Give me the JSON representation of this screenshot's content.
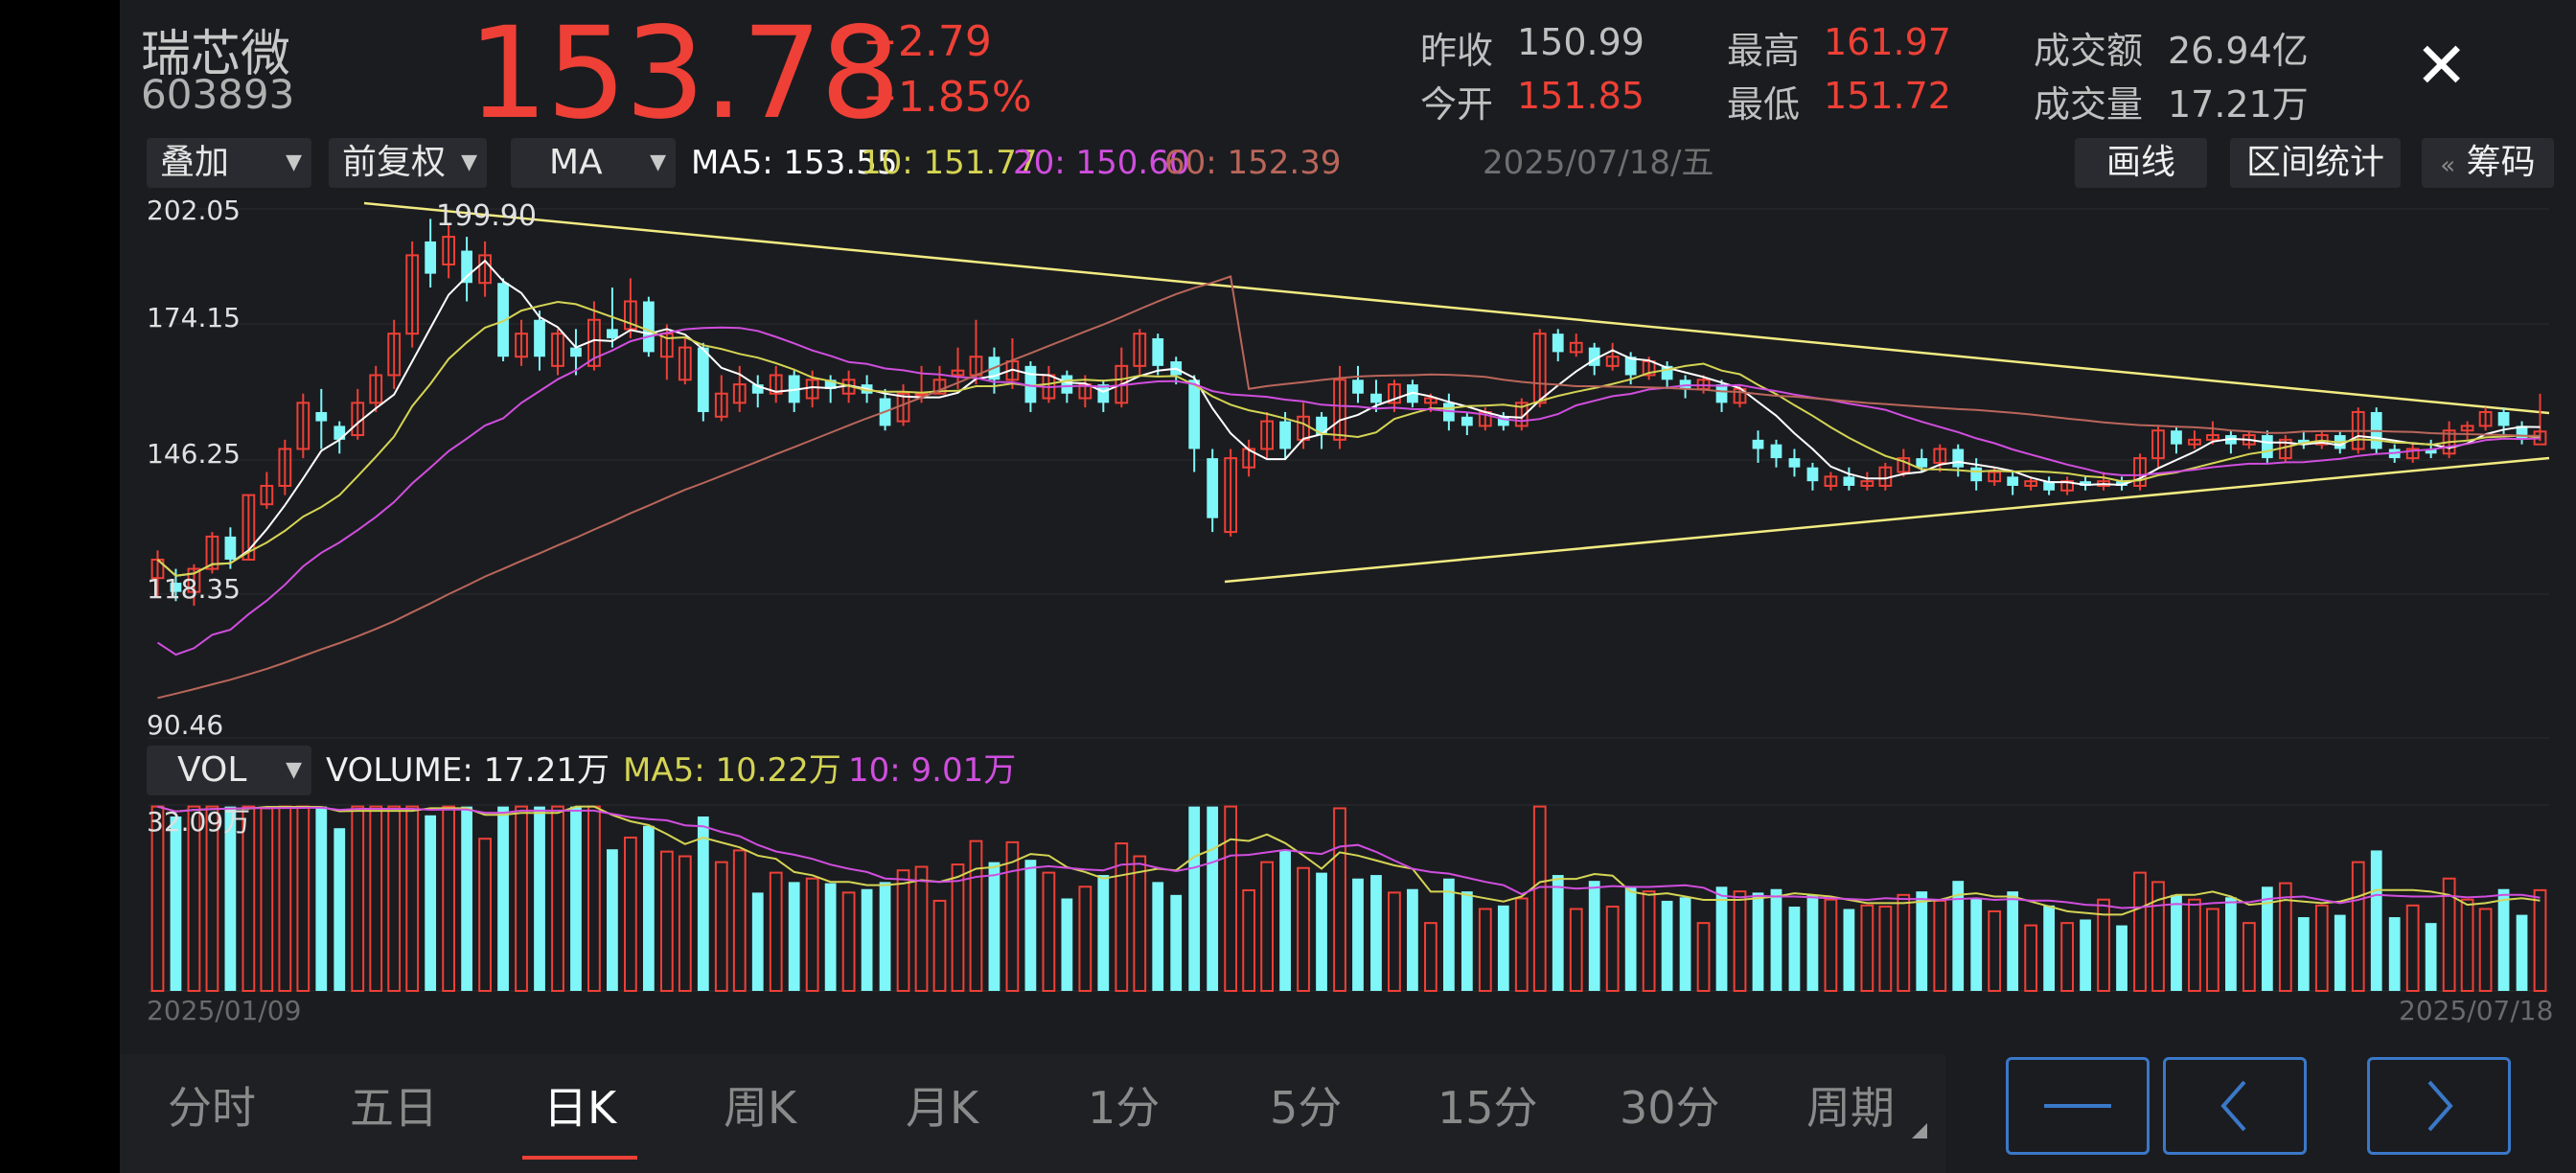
{
  "stock": {
    "name": "瑞芯微",
    "code": "603893",
    "price": "153.78",
    "change": "+2.79",
    "change_pct": "+1.85%"
  },
  "quote": {
    "prev_close_label": "昨收",
    "prev_close": "150.99",
    "open_label": "今开",
    "open": "151.85",
    "high_label": "最高",
    "high": "161.97",
    "low_label": "最低",
    "low": "151.72",
    "amount_label": "成交额",
    "amount": "26.94亿",
    "volume_label": "成交量",
    "volume": "17.21万"
  },
  "toolbar": {
    "overlay": "叠加",
    "adjust": "前复权",
    "indicator": "MA",
    "ma5": "MA5: 153.55",
    "ma10": "10: 151.77",
    "ma20": "20: 150.60",
    "ma60": "60: 152.39",
    "date": "2025/07/18/五",
    "draw_line": "画线",
    "interval_stats": "区间统计",
    "chips": "筹码",
    "chips_arrow": "«"
  },
  "price_axis": {
    "top": "202.05",
    "mid_high": "174.15",
    "mid_low": "146.25",
    "low_level": "118.35",
    "bottom": "90.46",
    "peak_label": "199.90"
  },
  "volume_bar": {
    "indicator": "VOL",
    "volume": "VOLUME: 17.21万",
    "ma5": "MA5: 10.22万",
    "ma10": "10: 9.01万",
    "max_label": "32.09万"
  },
  "dates": {
    "start": "2025/01/09",
    "end": "2025/07/18"
  },
  "period_tabs": [
    "分时",
    "五日",
    "日K",
    "周K",
    "月K",
    "1分",
    "5分",
    "15分",
    "30分",
    "周期"
  ],
  "active_tab": "日K",
  "colors": {
    "up": "#ee4036",
    "down": "#7ff6f8",
    "ma5": "#ffffff",
    "ma10": "#d4d454",
    "ma20": "#d04ede",
    "ma60": "#b9665a",
    "trendline": "#f2eb82",
    "accent": "#3a78c8"
  },
  "icons": [
    "close-icon",
    "caret-down-icon",
    "minus-icon",
    "chevron-left-icon",
    "chevron-right-icon"
  ],
  "chart_data": {
    "type": "candlestick",
    "x_range": [
      "2025/01/09",
      "2025/07/18"
    ],
    "ylim": [
      90.46,
      202.05
    ],
    "y_ticks": [
      202.05,
      174.15,
      146.25,
      118.35,
      90.46
    ],
    "candles_approx": [
      [
        122.0,
        126.0,
        118.0,
        128.0
      ],
      [
        121.0,
        119.0,
        117.0,
        124.0
      ],
      [
        119.0,
        124.0,
        116.0,
        125.0
      ],
      [
        124.0,
        131.0,
        123.0,
        132.0
      ],
      [
        131.0,
        126.0,
        124.0,
        133.0
      ],
      [
        126.0,
        140.0,
        126.0,
        140.0
      ],
      [
        138.0,
        142.0,
        137.0,
        145.0
      ],
      [
        142.0,
        150.0,
        140.0,
        152.0
      ],
      [
        150.0,
        160.0,
        148.0,
        162.0
      ],
      [
        158.0,
        156.0,
        150.0,
        163.0
      ],
      [
        155.0,
        152.0,
        149.0,
        156.0
      ],
      [
        153.0,
        160.0,
        152.0,
        163.0
      ],
      [
        160.0,
        166.0,
        158.0,
        168.0
      ],
      [
        166.0,
        175.0,
        163.0,
        178.0
      ],
      [
        175.0,
        192.0,
        172.0,
        195.0
      ],
      [
        195.0,
        188.0,
        185.0,
        199.9
      ],
      [
        190.0,
        196.0,
        187.0,
        199.0
      ],
      [
        193.0,
        186.0,
        182.0,
        196.0
      ],
      [
        186.0,
        192.0,
        183.0,
        195.0
      ],
      [
        186.0,
        170.0,
        169.0,
        187.0
      ],
      [
        170.0,
        175.0,
        168.0,
        178.0
      ],
      [
        178.0,
        170.0,
        167.0,
        180.0
      ],
      [
        168.0,
        175.0,
        166.0,
        176.0
      ],
      [
        172.0,
        170.0,
        166.0,
        176.0
      ],
      [
        168.0,
        178.0,
        167.0,
        182.0
      ],
      [
        176.0,
        174.0,
        172.0,
        185.0
      ],
      [
        176.0,
        182.0,
        174.0,
        187.0
      ],
      [
        182.0,
        171.0,
        170.0,
        183.0
      ],
      [
        170.0,
        175.0,
        165.0,
        177.0
      ],
      [
        165.0,
        172.0,
        164.0,
        174.0
      ],
      [
        172.0,
        158.0,
        156.0,
        173.0
      ],
      [
        157.0,
        162.0,
        156.0,
        166.0
      ],
      [
        160.0,
        164.0,
        158.0,
        168.0
      ],
      [
        164.0,
        162.0,
        159.0,
        166.0
      ],
      [
        162.0,
        166.0,
        160.0,
        168.0
      ],
      [
        166.0,
        160.0,
        158.0,
        167.0
      ],
      [
        161.0,
        165.0,
        159.0,
        167.0
      ],
      [
        165.0,
        163.0,
        160.0,
        166.0
      ],
      [
        162.0,
        165.0,
        160.0,
        167.0
      ],
      [
        164.0,
        162.0,
        160.0,
        166.0
      ],
      [
        161.0,
        155.0,
        154.0,
        163.0
      ],
      [
        156.0,
        162.0,
        155.0,
        164.0
      ],
      [
        162.0,
        162.0,
        160.0,
        168.0
      ],
      [
        162.0,
        165.0,
        162.0,
        168.0
      ],
      [
        166.0,
        167.0,
        163.0,
        172.0
      ],
      [
        166.0,
        170.0,
        164.0,
        178.0
      ],
      [
        170.0,
        165.0,
        162.0,
        172.0
      ],
      [
        165.0,
        169.0,
        163.0,
        174.0
      ],
      [
        168.0,
        160.0,
        158.0,
        169.0
      ],
      [
        161.0,
        166.0,
        160.0,
        168.0
      ],
      [
        166.0,
        162.0,
        160.0,
        167.0
      ],
      [
        161.0,
        164.0,
        159.0,
        166.0
      ],
      [
        164.0,
        160.0,
        158.0,
        165.0
      ],
      [
        160.0,
        168.0,
        159.0,
        172.0
      ],
      [
        168.0,
        175.0,
        166.0,
        176.0
      ],
      [
        174.0,
        168.0,
        166.0,
        175.0
      ],
      [
        169.0,
        166.0,
        164.0,
        170.0
      ],
      [
        165.0,
        150.0,
        145.0,
        166.0
      ],
      [
        148.0,
        135.0,
        132.0,
        150.0
      ],
      [
        132.0,
        148.0,
        131.0,
        150.0
      ],
      [
        146.0,
        150.0,
        144.0,
        152.0
      ],
      [
        150.0,
        156.0,
        148.0,
        158.0
      ],
      [
        156.0,
        150.0,
        148.0,
        158.0
      ],
      [
        152.0,
        157.0,
        150.0,
        160.0
      ],
      [
        157.0,
        153.0,
        150.0,
        158.0
      ],
      [
        152.0,
        165.0,
        150.0,
        168.0
      ],
      [
        165.0,
        162.0,
        160.0,
        168.0
      ],
      [
        162.0,
        160.0,
        158.0,
        165.0
      ],
      [
        160.0,
        164.0,
        158.0,
        165.0
      ],
      [
        164.0,
        160.0,
        159.0,
        165.0
      ],
      [
        160.0,
        161.0,
        158.0,
        162.0
      ],
      [
        160.0,
        156.0,
        154.0,
        162.0
      ],
      [
        157.0,
        155.0,
        153.0,
        158.0
      ],
      [
        155.0,
        158.0,
        154.0,
        159.0
      ],
      [
        157.0,
        155.0,
        154.0,
        158.0
      ],
      [
        155.0,
        160.0,
        154.0,
        161.0
      ],
      [
        160.0,
        175.0,
        159.0,
        176.0
      ],
      [
        175.0,
        171.0,
        169.0,
        176.0
      ],
      [
        171.0,
        173.0,
        170.0,
        175.0
      ],
      [
        172.0,
        168.0,
        166.0,
        173.0
      ],
      [
        168.0,
        170.0,
        167.0,
        173.0
      ],
      [
        170.0,
        166.0,
        164.0,
        171.0
      ],
      [
        166.0,
        169.0,
        165.0,
        170.0
      ],
      [
        168.0,
        165.0,
        163.0,
        169.0
      ],
      [
        165.0,
        163.0,
        161.0,
        166.0
      ],
      [
        163.0,
        165.0,
        162.0,
        166.0
      ],
      [
        164.0,
        160.0,
        158.0,
        165.0
      ],
      [
        160.0,
        163.0,
        159.0,
        164.0
      ],
      [
        152.0,
        150.0,
        147.0,
        154.0
      ],
      [
        151.0,
        148.0,
        146.0,
        152.0
      ],
      [
        148.0,
        146.0,
        144.0,
        150.0
      ],
      [
        146.0,
        143.0,
        141.0,
        147.0
      ],
      [
        142.0,
        144.0,
        141.0,
        145.0
      ],
      [
        144.0,
        142.0,
        141.0,
        146.0
      ],
      [
        142.0,
        143.0,
        141.0,
        145.0
      ],
      [
        142.0,
        146.0,
        141.0,
        147.0
      ],
      [
        145.0,
        148.0,
        144.0,
        150.0
      ],
      [
        148.0,
        146.0,
        145.0,
        150.0
      ],
      [
        147.0,
        150.0,
        145.0,
        151.0
      ],
      [
        150.0,
        146.0,
        144.0,
        151.0
      ],
      [
        146.0,
        143.0,
        141.0,
        148.0
      ],
      [
        143.0,
        145.0,
        142.0,
        146.0
      ],
      [
        144.0,
        142.0,
        140.0,
        145.0
      ],
      [
        142.0,
        143.0,
        141.0,
        144.0
      ],
      [
        143.0,
        141.0,
        140.0,
        144.0
      ],
      [
        141.0,
        143.0,
        140.0,
        144.0
      ],
      [
        143.0,
        142.0,
        141.0,
        144.0
      ],
      [
        142.0,
        143.0,
        141.0,
        145.0
      ],
      [
        143.0,
        142.0,
        141.0,
        144.0
      ],
      [
        142.0,
        148.0,
        141.0,
        149.0
      ],
      [
        148.0,
        154.0,
        146.0,
        155.0
      ],
      [
        154.0,
        151.0,
        149.0,
        155.0
      ],
      [
        151.0,
        152.0,
        150.0,
        154.0
      ],
      [
        152.0,
        153.0,
        151.0,
        156.0
      ],
      [
        153.0,
        151.0,
        149.0,
        154.0
      ],
      [
        151.0,
        153.0,
        150.0,
        154.0
      ],
      [
        153.0,
        148.0,
        147.0,
        154.0
      ],
      [
        148.0,
        152.0,
        147.0,
        153.0
      ],
      [
        152.0,
        151.0,
        150.0,
        154.0
      ],
      [
        151.0,
        153.0,
        150.0,
        154.0
      ],
      [
        153.0,
        150.0,
        149.0,
        154.0
      ],
      [
        150.0,
        158.0,
        149.0,
        159.0
      ],
      [
        158.0,
        150.0,
        149.0,
        159.0
      ],
      [
        150.0,
        148.0,
        147.0,
        151.0
      ],
      [
        148.0,
        150.0,
        147.0,
        151.0
      ],
      [
        150.0,
        149.0,
        148.0,
        152.0
      ],
      [
        149.0,
        154.0,
        148.0,
        156.0
      ],
      [
        154.0,
        155.0,
        152.0,
        156.0
      ],
      [
        155.0,
        158.0,
        154.0,
        159.0
      ],
      [
        158.0,
        155.0,
        153.0,
        159.0
      ],
      [
        155.0,
        152.0,
        151.0,
        156.0
      ],
      [
        151.0,
        153.78,
        151.72,
        161.97
      ]
    ]
  }
}
